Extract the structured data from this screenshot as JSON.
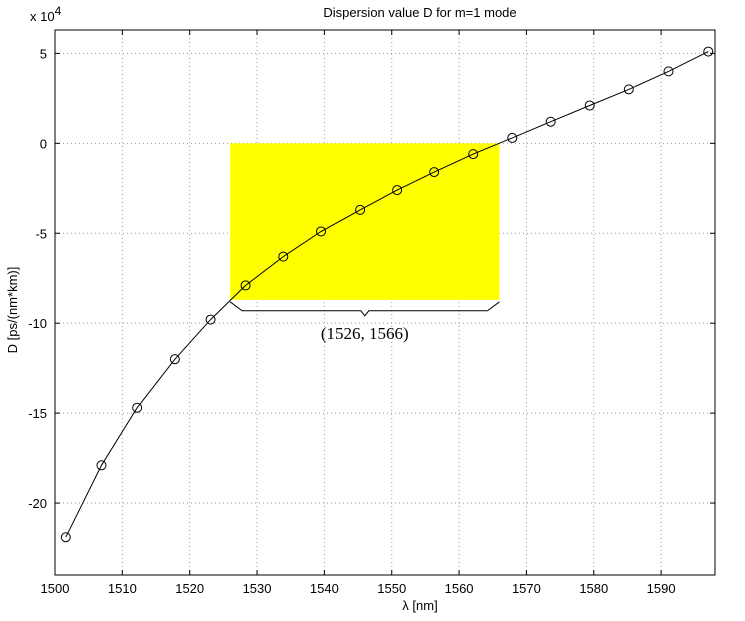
{
  "chart_data": {
    "type": "line",
    "title": "Dispersion value D for m=1 mode",
    "xlabel": "λ [nm]",
    "ylabel": "D [ps/(nm*km)]",
    "y_multiplier": "x 10",
    "y_multiplier_exponent": "4",
    "xlim": [
      1500,
      1598
    ],
    "ylim": [
      -24,
      6.3
    ],
    "y_scale_factor": 10000,
    "grid": true,
    "marker": "circle",
    "xticks": [
      1500,
      1510,
      1520,
      1530,
      1540,
      1550,
      1560,
      1570,
      1580,
      1590
    ],
    "yticks": [
      5,
      0,
      -5,
      -10,
      -15,
      -20
    ],
    "xtick_labels": [
      "1500",
      "1510",
      "1520",
      "1530",
      "1540",
      "1550",
      "1560",
      "1570",
      "1580",
      "1590"
    ],
    "ytick_labels": [
      "5",
      "0",
      "-5",
      "-10",
      "-15",
      "-20"
    ],
    "series": [
      {
        "x": [
          1501.6,
          1506.9,
          1512.2,
          1517.8,
          1523.1,
          1528.3,
          1533.9,
          1539.5,
          1545.3,
          1550.8,
          1556.3,
          1562.1,
          1567.9,
          1573.6,
          1579.4,
          1585.2,
          1591.1,
          1597.0
        ],
        "y": [
          -21.9,
          -17.9,
          -14.7,
          -12.0,
          -9.8,
          -7.9,
          -6.3,
          -4.9,
          -3.7,
          -2.6,
          -1.6,
          -0.6,
          0.3,
          1.2,
          2.1,
          3.0,
          4.0,
          5.1
        ]
      }
    ],
    "highlight": {
      "color": "#ffff00",
      "x_range": [
        1526,
        1566
      ],
      "y_range": [
        -8.7,
        0
      ]
    },
    "annotation": {
      "text": "(1526, 1566)",
      "x_range": [
        1526,
        1566
      ]
    }
  }
}
